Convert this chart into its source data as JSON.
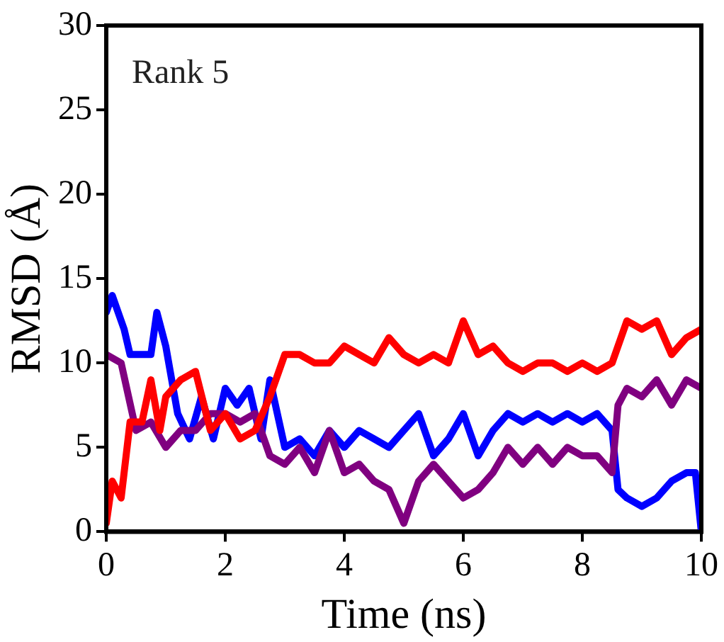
{
  "chart_data": {
    "type": "line",
    "xlabel": "Time (ns)",
    "ylabel": "RMSD (Å)",
    "annotations": [
      "Rank 5"
    ],
    "xlim": [
      0,
      10
    ],
    "xticks": [
      0,
      2,
      4,
      6,
      8,
      10
    ],
    "ylim": [
      0,
      30
    ],
    "yticks": [
      0,
      5,
      10,
      15,
      20,
      25,
      30
    ],
    "grid": false,
    "legend": false,
    "marker": "none",
    "line_style": "solid",
    "series": [
      {
        "color": "#ff0000",
        "x": [
          0,
          0.1,
          0.25,
          0.4,
          0.6,
          0.75,
          0.9,
          1,
          1.25,
          1.5,
          1.75,
          2,
          2.25,
          2.5,
          2.75,
          3,
          3.25,
          3.5,
          3.75,
          4,
          4.25,
          4.5,
          4.75,
          5,
          5.25,
          5.5,
          5.75,
          6,
          6.25,
          6.5,
          6.75,
          7,
          7.25,
          7.5,
          7.75,
          8,
          8.25,
          8.5,
          8.75,
          9,
          9.25,
          9.5,
          9.75,
          10
        ],
        "values": [
          0.5,
          3,
          2,
          6.5,
          6.5,
          9,
          6,
          8,
          9,
          9.5,
          6,
          7,
          5.5,
          6,
          8,
          10.5,
          10.5,
          10,
          10,
          11,
          10.5,
          10,
          11.5,
          10.5,
          10,
          10.5,
          10,
          12.5,
          10.5,
          11,
          10,
          9.5,
          10,
          10,
          9.5,
          10,
          9.5,
          10,
          12.5,
          12,
          12.5,
          10.5,
          11.5,
          12
        ]
      },
      {
        "color": "#800080",
        "x": [
          0,
          0.25,
          0.5,
          0.75,
          1,
          1.25,
          1.5,
          1.75,
          2,
          2.25,
          2.5,
          2.75,
          3,
          3.25,
          3.5,
          3.75,
          4,
          4.25,
          4.5,
          4.75,
          5,
          5.25,
          5.5,
          5.75,
          6,
          6.25,
          6.5,
          6.75,
          7,
          7.25,
          7.5,
          7.75,
          8,
          8.25,
          8.5,
          8.6,
          8.75,
          9,
          9.25,
          9.5,
          9.75,
          10
        ],
        "values": [
          10.5,
          10,
          6,
          6.5,
          5,
          6,
          6,
          7,
          7,
          6.5,
          7,
          4.5,
          4,
          5,
          3.5,
          6,
          3.5,
          4,
          3,
          2.5,
          0.5,
          3,
          4,
          3,
          2,
          2.5,
          3.5,
          5,
          4,
          5,
          4,
          5,
          4.5,
          4.5,
          3.5,
          7.5,
          8.5,
          8,
          9,
          7.5,
          9,
          8.5
        ]
      },
      {
        "color": "#0000ff",
        "x": [
          0,
          0.1,
          0.3,
          0.4,
          0.6,
          0.75,
          0.85,
          1,
          1.2,
          1.4,
          1.6,
          1.8,
          2,
          2.2,
          2.4,
          2.6,
          2.75,
          3,
          3.25,
          3.5,
          3.75,
          4,
          4.25,
          4.5,
          4.75,
          5,
          5.25,
          5.5,
          5.75,
          6,
          6.25,
          6.5,
          6.75,
          7,
          7.25,
          7.5,
          7.75,
          8,
          8.25,
          8.5,
          8.6,
          8.75,
          9,
          9.25,
          9.5,
          9.75,
          9.9,
          10
        ],
        "values": [
          13,
          14,
          12,
          10.5,
          10.5,
          10.5,
          13,
          11,
          7,
          5.5,
          8,
          5.5,
          8.5,
          7.5,
          8.5,
          5.5,
          9,
          5,
          5.5,
          4.5,
          6,
          5,
          6,
          5.5,
          5,
          6,
          7,
          4.5,
          5.5,
          7,
          4.5,
          6,
          7,
          6.5,
          7,
          6.5,
          7,
          6.5,
          7,
          6,
          2.5,
          2,
          1.5,
          2,
          3,
          3.5,
          3.5,
          0
        ]
      }
    ]
  }
}
